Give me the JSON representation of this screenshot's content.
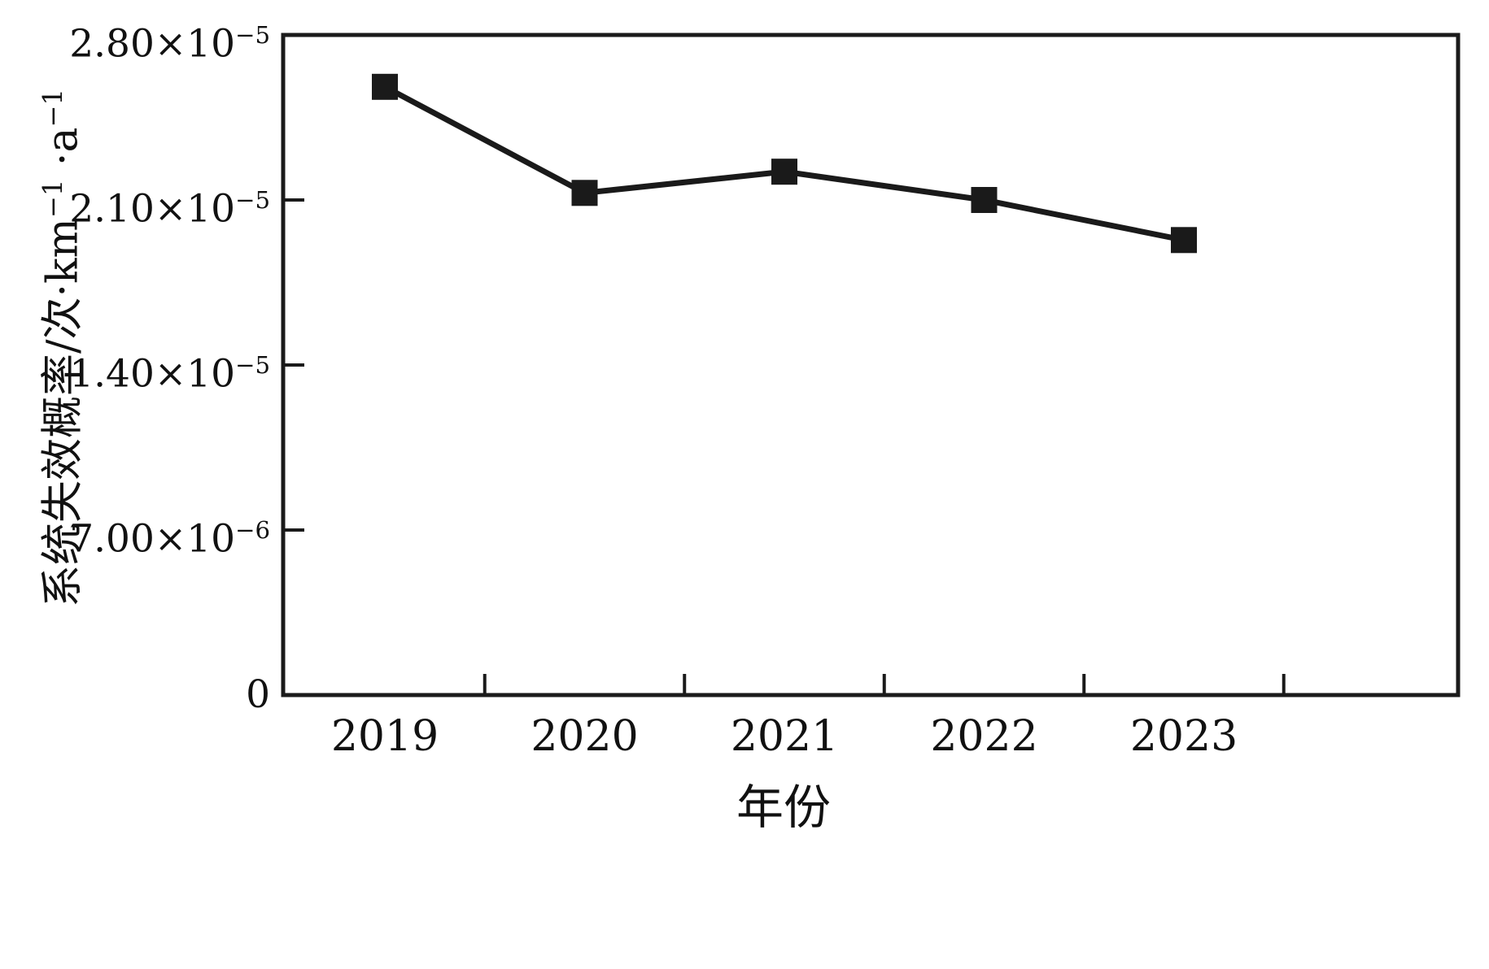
{
  "figure": {
    "background": "#ffffff"
  },
  "chart_data": {
    "type": "line",
    "title": "",
    "xlabel": "年份",
    "ylabel": "系统失效概率/次·km⁻¹·a⁻¹",
    "ylabel_parts": [
      {
        "t": "系统失效概率/次·km"
      },
      {
        "sup": "−1"
      },
      {
        "t": " ·a"
      },
      {
        "sup": "−1"
      }
    ],
    "categories": [
      "2019",
      "2020",
      "2021",
      "2022",
      "2023"
    ],
    "values": [
      2.58e-05,
      2.13e-05,
      2.22e-05,
      2.1e-05,
      1.93e-05
    ],
    "ylim": [
      0,
      2.8e-05
    ],
    "yticks": [
      {
        "value": 0,
        "base": "0",
        "exp": ""
      },
      {
        "value": 7e-06,
        "base": "7.00×10",
        "exp": "−6"
      },
      {
        "value": 1.4e-05,
        "base": "1.40×10",
        "exp": "−5"
      },
      {
        "value": 2.1e-05,
        "base": "2.10×10",
        "exp": "−5"
      },
      {
        "value": 2.8e-05,
        "base": "2.80×10",
        "exp": "−5"
      }
    ],
    "grid": false,
    "legend": "none",
    "marker": "square",
    "line_color": "#1a1a1a",
    "marker_color": "#1a1a1a"
  }
}
